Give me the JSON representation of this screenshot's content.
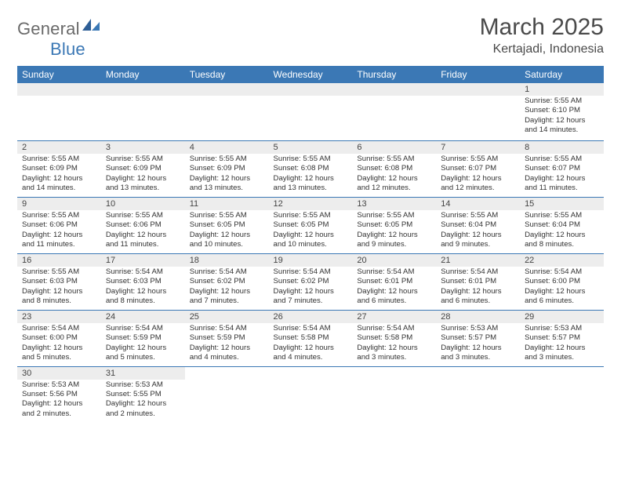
{
  "logo": {
    "word1": "General",
    "word2": "Blue"
  },
  "header": {
    "title": "March 2025",
    "location": "Kertajadi, Indonesia"
  },
  "colors": {
    "accent": "#3B78B5",
    "shade": "#ededed",
    "border": "#3B78B5"
  },
  "weekdays": [
    "Sunday",
    "Monday",
    "Tuesday",
    "Wednesday",
    "Thursday",
    "Friday",
    "Saturday"
  ],
  "weeks": [
    [
      null,
      null,
      null,
      null,
      null,
      null,
      {
        "n": "1",
        "sr": "Sunrise: 5:55 AM",
        "ss": "Sunset: 6:10 PM",
        "d1": "Daylight: 12 hours",
        "d2": "and 14 minutes."
      }
    ],
    [
      {
        "n": "2",
        "sr": "Sunrise: 5:55 AM",
        "ss": "Sunset: 6:09 PM",
        "d1": "Daylight: 12 hours",
        "d2": "and 14 minutes."
      },
      {
        "n": "3",
        "sr": "Sunrise: 5:55 AM",
        "ss": "Sunset: 6:09 PM",
        "d1": "Daylight: 12 hours",
        "d2": "and 13 minutes."
      },
      {
        "n": "4",
        "sr": "Sunrise: 5:55 AM",
        "ss": "Sunset: 6:09 PM",
        "d1": "Daylight: 12 hours",
        "d2": "and 13 minutes."
      },
      {
        "n": "5",
        "sr": "Sunrise: 5:55 AM",
        "ss": "Sunset: 6:08 PM",
        "d1": "Daylight: 12 hours",
        "d2": "and 13 minutes."
      },
      {
        "n": "6",
        "sr": "Sunrise: 5:55 AM",
        "ss": "Sunset: 6:08 PM",
        "d1": "Daylight: 12 hours",
        "d2": "and 12 minutes."
      },
      {
        "n": "7",
        "sr": "Sunrise: 5:55 AM",
        "ss": "Sunset: 6:07 PM",
        "d1": "Daylight: 12 hours",
        "d2": "and 12 minutes."
      },
      {
        "n": "8",
        "sr": "Sunrise: 5:55 AM",
        "ss": "Sunset: 6:07 PM",
        "d1": "Daylight: 12 hours",
        "d2": "and 11 minutes."
      }
    ],
    [
      {
        "n": "9",
        "sr": "Sunrise: 5:55 AM",
        "ss": "Sunset: 6:06 PM",
        "d1": "Daylight: 12 hours",
        "d2": "and 11 minutes."
      },
      {
        "n": "10",
        "sr": "Sunrise: 5:55 AM",
        "ss": "Sunset: 6:06 PM",
        "d1": "Daylight: 12 hours",
        "d2": "and 11 minutes."
      },
      {
        "n": "11",
        "sr": "Sunrise: 5:55 AM",
        "ss": "Sunset: 6:05 PM",
        "d1": "Daylight: 12 hours",
        "d2": "and 10 minutes."
      },
      {
        "n": "12",
        "sr": "Sunrise: 5:55 AM",
        "ss": "Sunset: 6:05 PM",
        "d1": "Daylight: 12 hours",
        "d2": "and 10 minutes."
      },
      {
        "n": "13",
        "sr": "Sunrise: 5:55 AM",
        "ss": "Sunset: 6:05 PM",
        "d1": "Daylight: 12 hours",
        "d2": "and 9 minutes."
      },
      {
        "n": "14",
        "sr": "Sunrise: 5:55 AM",
        "ss": "Sunset: 6:04 PM",
        "d1": "Daylight: 12 hours",
        "d2": "and 9 minutes."
      },
      {
        "n": "15",
        "sr": "Sunrise: 5:55 AM",
        "ss": "Sunset: 6:04 PM",
        "d1": "Daylight: 12 hours",
        "d2": "and 8 minutes."
      }
    ],
    [
      {
        "n": "16",
        "sr": "Sunrise: 5:55 AM",
        "ss": "Sunset: 6:03 PM",
        "d1": "Daylight: 12 hours",
        "d2": "and 8 minutes."
      },
      {
        "n": "17",
        "sr": "Sunrise: 5:54 AM",
        "ss": "Sunset: 6:03 PM",
        "d1": "Daylight: 12 hours",
        "d2": "and 8 minutes."
      },
      {
        "n": "18",
        "sr": "Sunrise: 5:54 AM",
        "ss": "Sunset: 6:02 PM",
        "d1": "Daylight: 12 hours",
        "d2": "and 7 minutes."
      },
      {
        "n": "19",
        "sr": "Sunrise: 5:54 AM",
        "ss": "Sunset: 6:02 PM",
        "d1": "Daylight: 12 hours",
        "d2": "and 7 minutes."
      },
      {
        "n": "20",
        "sr": "Sunrise: 5:54 AM",
        "ss": "Sunset: 6:01 PM",
        "d1": "Daylight: 12 hours",
        "d2": "and 6 minutes."
      },
      {
        "n": "21",
        "sr": "Sunrise: 5:54 AM",
        "ss": "Sunset: 6:01 PM",
        "d1": "Daylight: 12 hours",
        "d2": "and 6 minutes."
      },
      {
        "n": "22",
        "sr": "Sunrise: 5:54 AM",
        "ss": "Sunset: 6:00 PM",
        "d1": "Daylight: 12 hours",
        "d2": "and 6 minutes."
      }
    ],
    [
      {
        "n": "23",
        "sr": "Sunrise: 5:54 AM",
        "ss": "Sunset: 6:00 PM",
        "d1": "Daylight: 12 hours",
        "d2": "and 5 minutes."
      },
      {
        "n": "24",
        "sr": "Sunrise: 5:54 AM",
        "ss": "Sunset: 5:59 PM",
        "d1": "Daylight: 12 hours",
        "d2": "and 5 minutes."
      },
      {
        "n": "25",
        "sr": "Sunrise: 5:54 AM",
        "ss": "Sunset: 5:59 PM",
        "d1": "Daylight: 12 hours",
        "d2": "and 4 minutes."
      },
      {
        "n": "26",
        "sr": "Sunrise: 5:54 AM",
        "ss": "Sunset: 5:58 PM",
        "d1": "Daylight: 12 hours",
        "d2": "and 4 minutes."
      },
      {
        "n": "27",
        "sr": "Sunrise: 5:54 AM",
        "ss": "Sunset: 5:58 PM",
        "d1": "Daylight: 12 hours",
        "d2": "and 3 minutes."
      },
      {
        "n": "28",
        "sr": "Sunrise: 5:53 AM",
        "ss": "Sunset: 5:57 PM",
        "d1": "Daylight: 12 hours",
        "d2": "and 3 minutes."
      },
      {
        "n": "29",
        "sr": "Sunrise: 5:53 AM",
        "ss": "Sunset: 5:57 PM",
        "d1": "Daylight: 12 hours",
        "d2": "and 3 minutes."
      }
    ],
    [
      {
        "n": "30",
        "sr": "Sunrise: 5:53 AM",
        "ss": "Sunset: 5:56 PM",
        "d1": "Daylight: 12 hours",
        "d2": "and 2 minutes."
      },
      {
        "n": "31",
        "sr": "Sunrise: 5:53 AM",
        "ss": "Sunset: 5:55 PM",
        "d1": "Daylight: 12 hours",
        "d2": "and 2 minutes."
      },
      null,
      null,
      null,
      null,
      null
    ]
  ]
}
